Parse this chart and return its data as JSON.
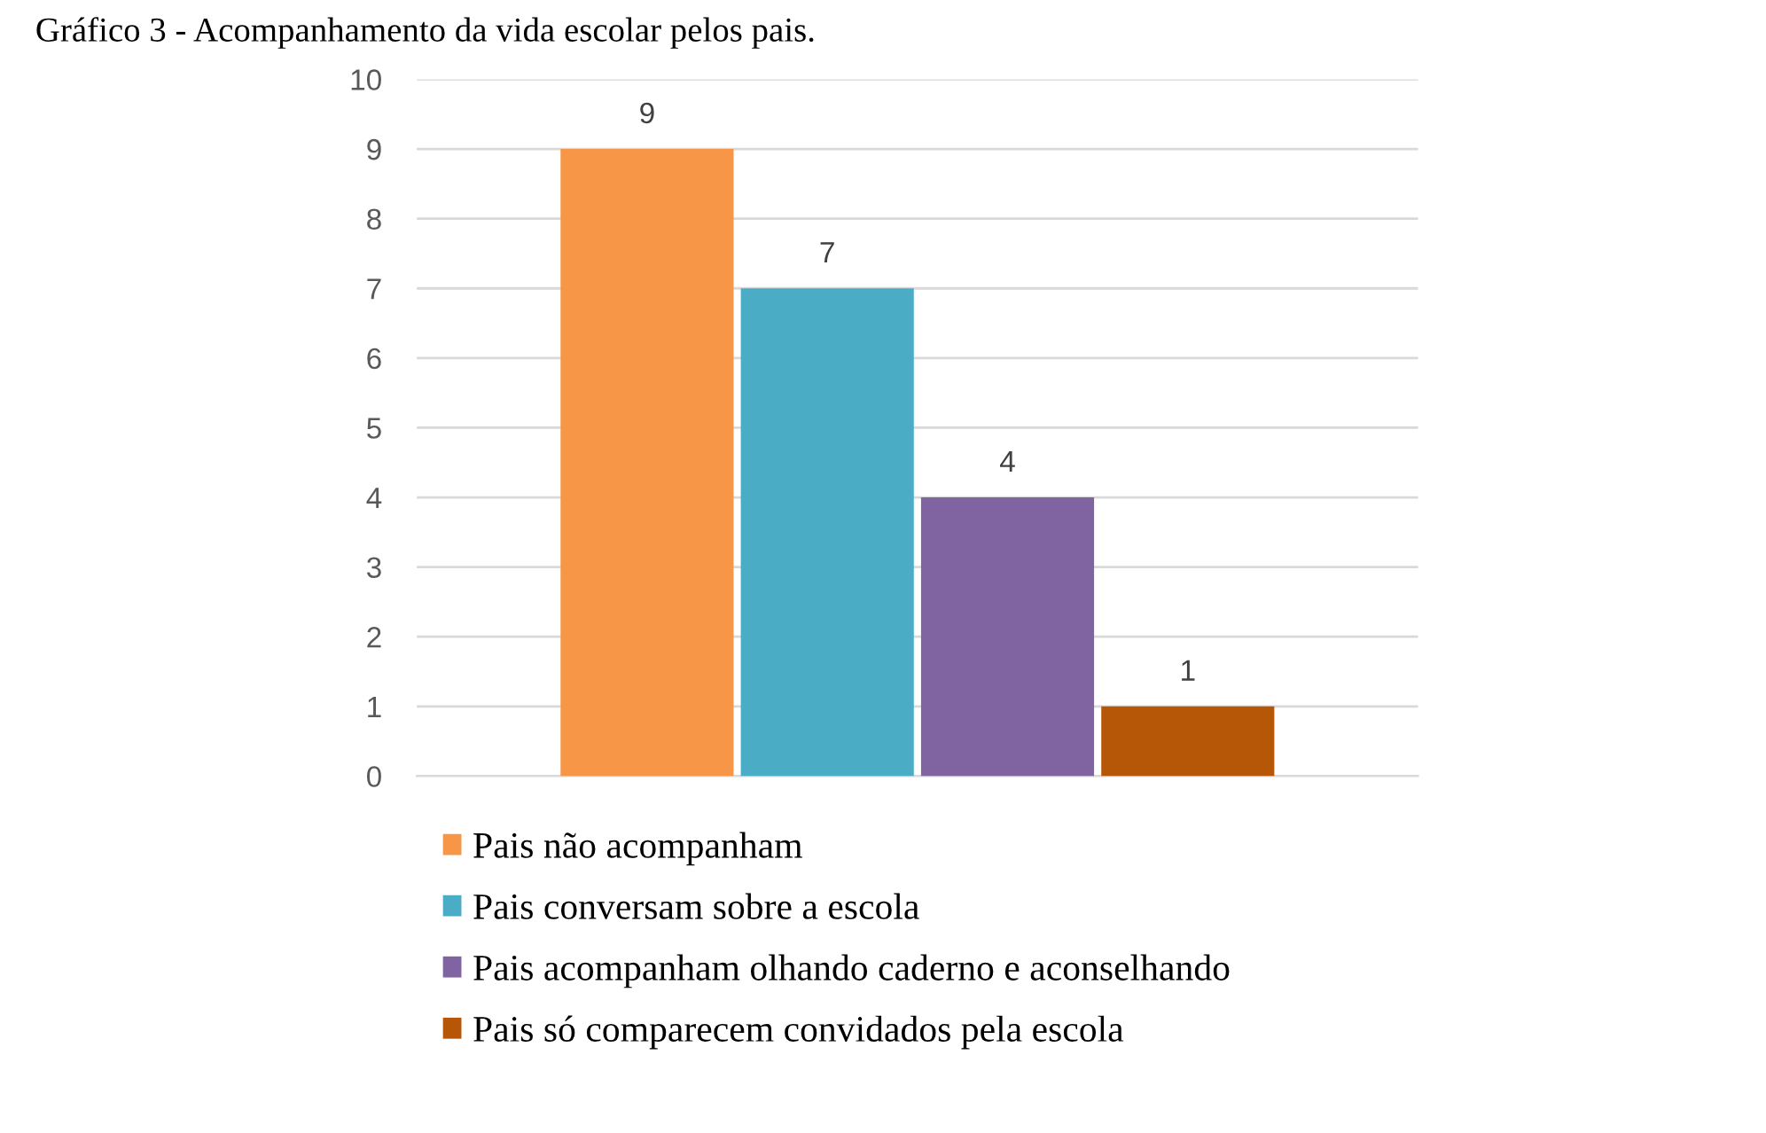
{
  "chart_data": {
    "type": "bar",
    "title": "Gráfico 3 - Acompanhamento da vida escolar pelos pais.",
    "categories": [
      null
    ],
    "series": [
      {
        "name": "Pais não acompanham",
        "color": "#f79646",
        "values": [
          9
        ]
      },
      {
        "name": "Pais conversam sobre a escola",
        "color": "#4bacc6",
        "values": [
          7
        ]
      },
      {
        "name": "Pais acompanham olhando caderno e aconselhando",
        "color": "#8064a2",
        "values": [
          4
        ]
      },
      {
        "name": "Pais só comparecem convidados pela escola",
        "color": "#b65708",
        "values": [
          1
        ]
      }
    ],
    "ylim": [
      0,
      10
    ],
    "yticks": [
      0,
      1,
      2,
      3,
      4,
      5,
      6,
      7,
      8,
      9,
      10
    ],
    "grid": "y",
    "legend": "bottom",
    "data_labels": true,
    "tick_labels": "y"
  }
}
